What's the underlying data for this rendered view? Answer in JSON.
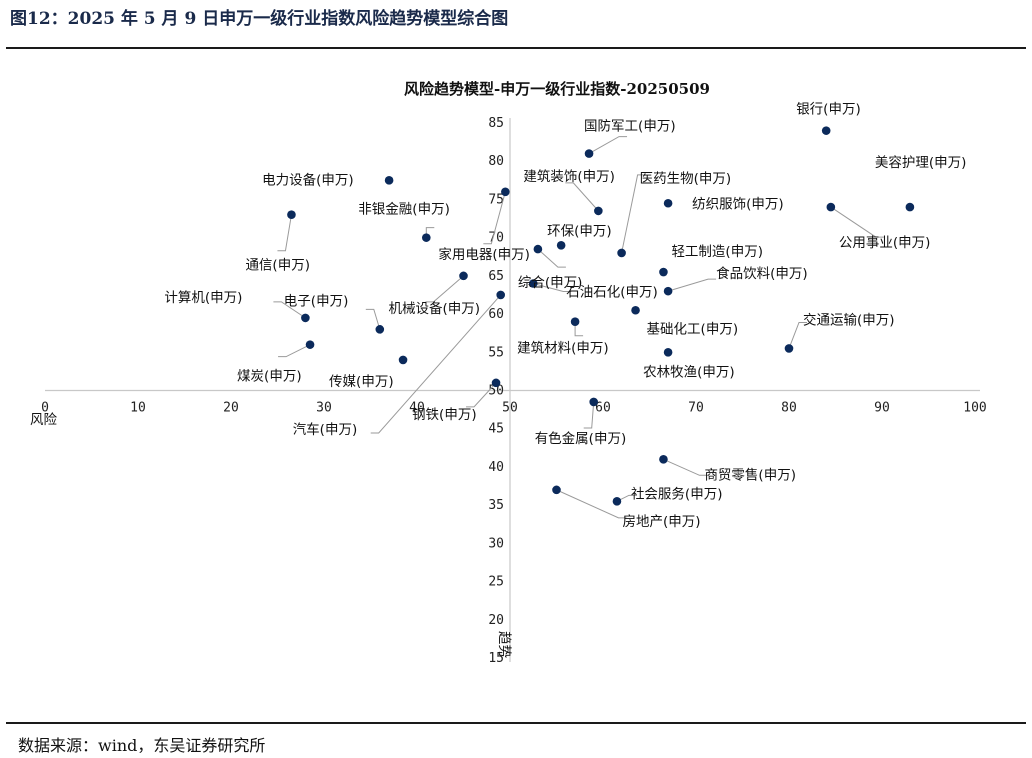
{
  "figure_title": "图12：2025 年 5 月 9 日申万一级行业指数风险趋势模型综合图",
  "source": "数据来源：wind，东吴证券研究所",
  "colors": {
    "point": "#0b2a5b",
    "leader": "#9a9a9a",
    "axis": "#c8c8c8"
  },
  "chart_data": {
    "type": "scatter",
    "title": "风险趋势模型-申万一级行业指数-20250509",
    "xlabel": "风险",
    "ylabel": "趋势",
    "xlim": [
      0,
      100
    ],
    "ylim": [
      15,
      85
    ],
    "x_ticks": [
      0,
      10,
      20,
      30,
      40,
      50,
      60,
      70,
      80,
      90,
      100
    ],
    "y_ticks": [
      15,
      20,
      25,
      30,
      35,
      40,
      45,
      50,
      55,
      60,
      65,
      70,
      75,
      80,
      85
    ],
    "y_axis_at_x": 50,
    "x_axis_at_y": 50,
    "grid": false,
    "points": [
      {
        "label": "银行(申万)",
        "x": 84,
        "y": 84
      },
      {
        "label": "国防军工(申万)",
        "x": 58.5,
        "y": 81
      },
      {
        "label": "医药生物(申万)",
        "x": 62,
        "y": 68
      },
      {
        "label": "美容护理(申万)",
        "x": 93,
        "y": 74
      },
      {
        "label": "电力设备(申万)",
        "x": 37,
        "y": 77.5
      },
      {
        "label": "建筑装饰(申万)",
        "x": 59.5,
        "y": 73.5
      },
      {
        "label": "纺织服饰(申万)",
        "x": 67,
        "y": 74.5
      },
      {
        "label": "非银金融(申万)",
        "x": 41,
        "y": 70
      },
      {
        "label": "家用电器(申万)",
        "x": 49.5,
        "y": 76
      },
      {
        "label": "环保(申万)",
        "x": 55.5,
        "y": 69
      },
      {
        "label": "公用事业(申万)",
        "x": 84.5,
        "y": 74
      },
      {
        "label": "通信(申万)",
        "x": 26.5,
        "y": 73
      },
      {
        "label": "轻工制造(申万)",
        "x": 66.5,
        "y": 65.5
      },
      {
        "label": "综合(申万)",
        "x": 53,
        "y": 68.5
      },
      {
        "label": "食品饮料(申万)",
        "x": 67,
        "y": 63
      },
      {
        "label": "计算机(申万)",
        "x": 28,
        "y": 59.5
      },
      {
        "label": "电子(申万)",
        "x": 36,
        "y": 58
      },
      {
        "label": "机械设备(申万)",
        "x": 45,
        "y": 65
      },
      {
        "label": "石油石化(申万)",
        "x": 52.5,
        "y": 64
      },
      {
        "label": "建筑材料(申万)",
        "x": 57,
        "y": 59
      },
      {
        "label": "基础化工(申万)",
        "x": 63.5,
        "y": 60.5
      },
      {
        "label": "交通运输(申万)",
        "x": 80,
        "y": 55.5
      },
      {
        "label": "煤炭(申万)",
        "x": 28.5,
        "y": 56
      },
      {
        "label": "传媒(申万)",
        "x": 38.5,
        "y": 54
      },
      {
        "label": "农林牧渔(申万)",
        "x": 67,
        "y": 55
      },
      {
        "label": "钢铁(申万)",
        "x": 48.5,
        "y": 51
      },
      {
        "label": "汽车(申万)",
        "x": 49,
        "y": 62.5
      },
      {
        "label": "有色金属(申万)",
        "x": 59,
        "y": 48.5
      },
      {
        "label": "商贸零售(申万)",
        "x": 66.5,
        "y": 41
      },
      {
        "label": "社会服务(申万)",
        "x": 61.5,
        "y": 35.5
      },
      {
        "label": "房地产(申万)",
        "x": 55,
        "y": 37
      }
    ]
  }
}
